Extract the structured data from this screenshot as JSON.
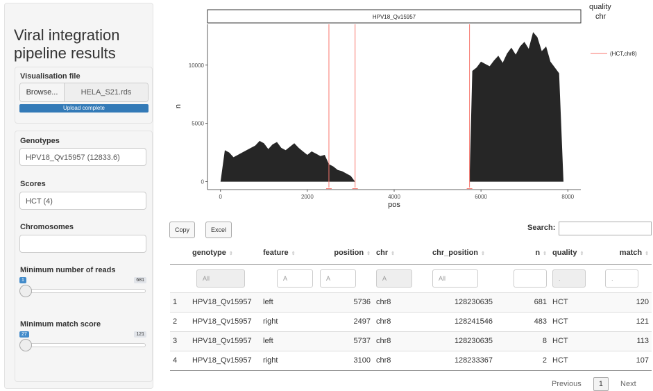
{
  "sidebar": {
    "title": "Viral integration pipeline results",
    "file_label": "Visualisation file",
    "browse_label": "Browse...",
    "file_name": "HELA_S21.rds",
    "upload_status": "Upload complete",
    "genotypes_label": "Genotypes",
    "genotypes_value": "HPV18_Qv15957 (12833.6)",
    "scores_label": "Scores",
    "scores_value": "HCT (4)",
    "chromosomes_label": "Chromosomes",
    "chromosomes_value": "",
    "min_reads_label": "Minimum number of reads",
    "min_reads_value": "1",
    "min_reads_max": "681",
    "min_match_label": "Minimum match score",
    "min_match_value": "27",
    "min_match_max": "121"
  },
  "chart_data": {
    "type": "area",
    "facet_label": "HPV18_Qv15957",
    "xlabel": "pos",
    "ylabel": "n",
    "x_ticks": [
      "0",
      "2000",
      "4000",
      "6000",
      "8000"
    ],
    "y_ticks": [
      "0",
      "5000",
      "10000"
    ],
    "xlim": [
      -300,
      8300
    ],
    "ylim": [
      -500,
      13500
    ],
    "legend_title": [
      "quality",
      "chr"
    ],
    "legend_entry": "(HCT,chr8)",
    "vlines": [
      2497,
      3100,
      5736
    ],
    "x": [
      0,
      100,
      200,
      300,
      400,
      500,
      600,
      700,
      800,
      900,
      1000,
      1100,
      1200,
      1300,
      1400,
      1500,
      1600,
      1700,
      1800,
      1900,
      2000,
      2100,
      2200,
      2300,
      2400,
      2497,
      2600,
      2700,
      2800,
      2900,
      3000,
      3100,
      5736,
      5800,
      5900,
      6000,
      6100,
      6200,
      6300,
      6400,
      6500,
      6600,
      6700,
      6800,
      6900,
      7000,
      7100,
      7200,
      7300,
      7400,
      7500,
      7600,
      7700,
      7800,
      7900
    ],
    "y": [
      0,
      2700,
      2500,
      2100,
      2300,
      2500,
      2700,
      2900,
      3100,
      3500,
      3300,
      2800,
      3200,
      3400,
      2900,
      2700,
      3000,
      3300,
      2900,
      2600,
      2300,
      2600,
      2400,
      2200,
      2300,
      1500,
      1300,
      1000,
      900,
      700,
      500,
      0,
      0,
      9500,
      9800,
      10300,
      10100,
      9900,
      10400,
      10800,
      10200,
      11000,
      11500,
      10900,
      11600,
      12000,
      11400,
      12833,
      12400,
      11200,
      11600,
      10300,
      9800,
      9300,
      0
    ],
    "colors": {
      "area": "#262626",
      "vline": "#f8766d",
      "facet_border": "#333333"
    }
  },
  "toolbar": {
    "copy_label": "Copy",
    "excel_label": "Excel",
    "search_label": "Search:"
  },
  "table": {
    "headers": [
      "",
      "genotype",
      "feature",
      "position",
      "chr",
      "chr_position",
      "n",
      "quality",
      "match"
    ],
    "filters": [
      "All",
      "A",
      "A",
      "A",
      "All",
      "",
      ".",
      "."
    ],
    "rows": [
      [
        "1",
        "HPV18_Qv15957",
        "left",
        "5736",
        "chr8",
        "128230635",
        "681",
        "HCT",
        "120"
      ],
      [
        "2",
        "HPV18_Qv15957",
        "right",
        "2497",
        "chr8",
        "128241546",
        "483",
        "HCT",
        "121"
      ],
      [
        "3",
        "HPV18_Qv15957",
        "left",
        "5737",
        "chr8",
        "128230635",
        "8",
        "HCT",
        "113"
      ],
      [
        "4",
        "HPV18_Qv15957",
        "right",
        "3100",
        "chr8",
        "128233367",
        "2",
        "HCT",
        "107"
      ]
    ]
  },
  "pager": {
    "previous": "Previous",
    "page": "1",
    "next": "Next"
  }
}
